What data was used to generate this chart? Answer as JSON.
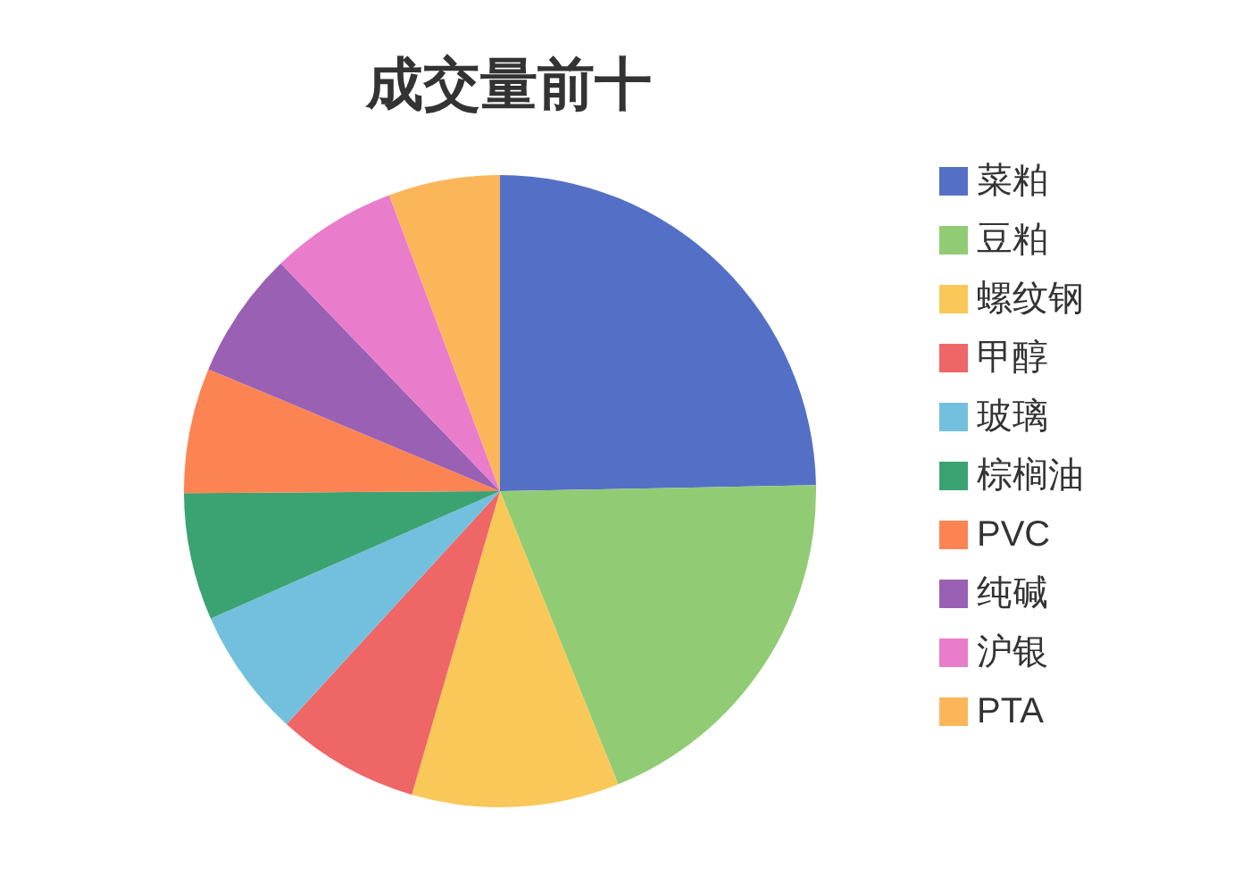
{
  "chart_data": {
    "type": "pie",
    "title": "成交量前十",
    "categories": [
      "菜粕",
      "豆粕",
      "螺纹钢",
      "甲醇",
      "玻璃",
      "棕榈油",
      "PVC",
      "纯碱",
      "沪银",
      "PTA"
    ],
    "values": [
      24.7,
      19.2,
      10.6,
      7.3,
      6.6,
      6.5,
      6.4,
      6.5,
      6.5,
      5.7
    ],
    "colors": [
      "#5470c6",
      "#91cc75",
      "#fac858",
      "#ee6666",
      "#73c0de",
      "#3ba272",
      "#fc8452",
      "#9a60b4",
      "#ea7ccc",
      "#fcb65a"
    ],
    "legend": "right"
  }
}
